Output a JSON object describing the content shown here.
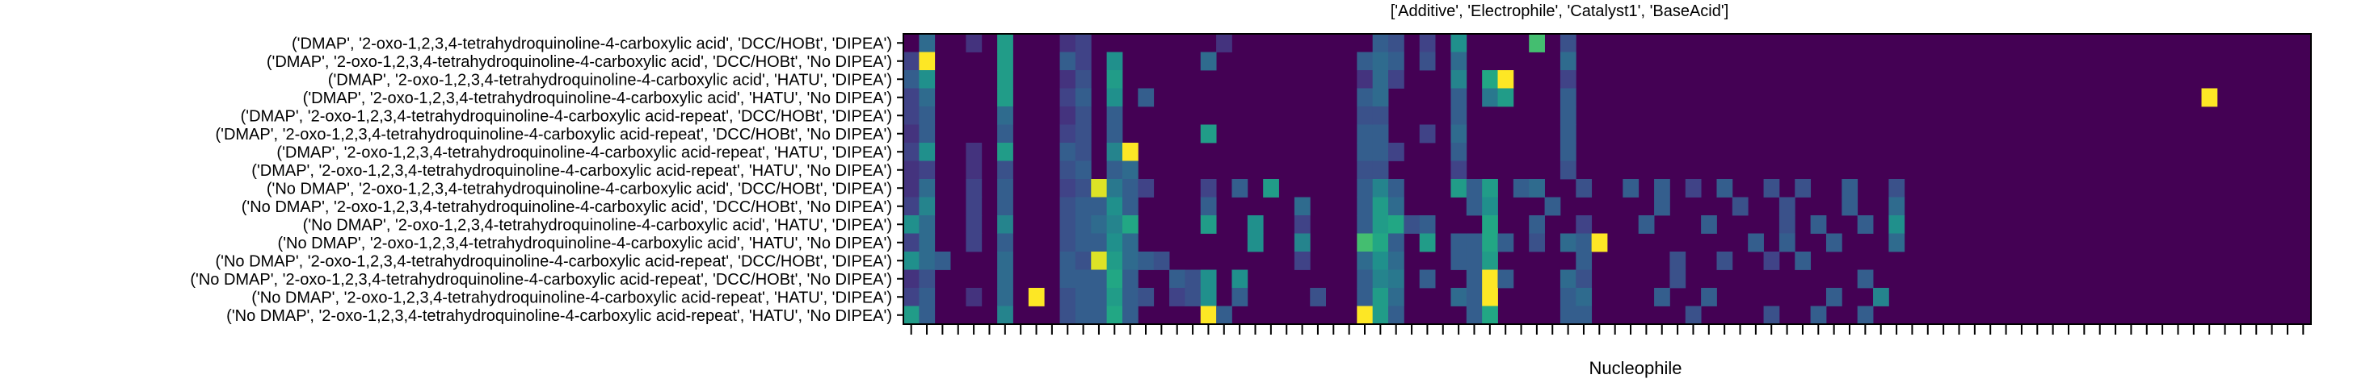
{
  "chart_data": {
    "type": "heatmap",
    "title": "['Additive', 'Electrophile', 'Catalyst1', 'BaseAcid']",
    "xlabel": "Nucleophile",
    "ylabel": "",
    "n_columns": 90,
    "x_tick_labels_visible": false,
    "colormap": "viridis",
    "value_range": [
      0,
      1
    ],
    "rows": [
      "('DMAP', '2-oxo-1,2,3,4-tetrahydroquinoline-4-carboxylic acid', 'DCC/HOBt', 'DIPEA')",
      "('DMAP', '2-oxo-1,2,3,4-tetrahydroquinoline-4-carboxylic acid', 'DCC/HOBt', 'No DIPEA')",
      "('DMAP', '2-oxo-1,2,3,4-tetrahydroquinoline-4-carboxylic acid', 'HATU', 'DIPEA')",
      "('DMAP', '2-oxo-1,2,3,4-tetrahydroquinoline-4-carboxylic acid', 'HATU', 'No DIPEA')",
      "('DMAP', '2-oxo-1,2,3,4-tetrahydroquinoline-4-carboxylic acid-repeat', 'DCC/HOBt', 'DIPEA')",
      "('DMAP', '2-oxo-1,2,3,4-tetrahydroquinoline-4-carboxylic acid-repeat', 'DCC/HOBt', 'No DIPEA')",
      "('DMAP', '2-oxo-1,2,3,4-tetrahydroquinoline-4-carboxylic acid-repeat', 'HATU', 'DIPEA')",
      "('DMAP', '2-oxo-1,2,3,4-tetrahydroquinoline-4-carboxylic acid-repeat', 'HATU', 'No DIPEA')",
      "('No DMAP', '2-oxo-1,2,3,4-tetrahydroquinoline-4-carboxylic acid', 'DCC/HOBt', 'DIPEA')",
      "('No DMAP', '2-oxo-1,2,3,4-tetrahydroquinoline-4-carboxylic acid', 'DCC/HOBt', 'No DIPEA')",
      "('No DMAP', '2-oxo-1,2,3,4-tetrahydroquinoline-4-carboxylic acid', 'HATU', 'DIPEA')",
      "('No DMAP', '2-oxo-1,2,3,4-tetrahydroquinoline-4-carboxylic acid', 'HATU', 'No DIPEA')",
      "('No DMAP', '2-oxo-1,2,3,4-tetrahydroquinoline-4-carboxylic acid-repeat', 'DCC/HOBt', 'DIPEA')",
      "('No DMAP', '2-oxo-1,2,3,4-tetrahydroquinoline-4-carboxylic acid-repeat', 'DCC/HOBt', 'No DIPEA')",
      "('No DMAP', '2-oxo-1,2,3,4-tetrahydroquinoline-4-carboxylic acid-repeat', 'HATU', 'DIPEA')",
      "('No DMAP', '2-oxo-1,2,3,4-tetrahydroquinoline-4-carboxylic acid-repeat', 'HATU', 'No DIPEA')"
    ],
    "cells": [
      [
        [
          1,
          0.35
        ],
        [
          4,
          0.15
        ],
        [
          6,
          0.55
        ],
        [
          10,
          0.15
        ],
        [
          11,
          0.2
        ],
        [
          20,
          0.15
        ],
        [
          30,
          0.3
        ],
        [
          31,
          0.25
        ],
        [
          33,
          0.2
        ],
        [
          35,
          0.5
        ],
        [
          40,
          0.7
        ],
        [
          42,
          0.25
        ]
      ],
      [
        [
          0,
          0.2
        ],
        [
          1,
          1.0
        ],
        [
          6,
          0.55
        ],
        [
          10,
          0.3
        ],
        [
          11,
          0.2
        ],
        [
          13,
          0.5
        ],
        [
          19,
          0.35
        ],
        [
          29,
          0.3
        ],
        [
          30,
          0.35
        ],
        [
          31,
          0.3
        ],
        [
          33,
          0.25
        ],
        [
          35,
          0.35
        ],
        [
          42,
          0.35
        ]
      ],
      [
        [
          0,
          0.3
        ],
        [
          1,
          0.5
        ],
        [
          6,
          0.55
        ],
        [
          10,
          0.15
        ],
        [
          11,
          0.25
        ],
        [
          13,
          0.55
        ],
        [
          29,
          0.15
        ],
        [
          30,
          0.35
        ],
        [
          31,
          0.2
        ],
        [
          35,
          0.45
        ],
        [
          37,
          0.6
        ],
        [
          38,
          1.0
        ],
        [
          42,
          0.2
        ]
      ],
      [
        [
          0,
          0.2
        ],
        [
          1,
          0.35
        ],
        [
          6,
          0.55
        ],
        [
          10,
          0.2
        ],
        [
          11,
          0.3
        ],
        [
          13,
          0.5
        ],
        [
          15,
          0.3
        ],
        [
          29,
          0.3
        ],
        [
          30,
          0.35
        ],
        [
          35,
          0.3
        ],
        [
          37,
          0.4
        ],
        [
          38,
          0.55
        ],
        [
          42,
          0.3
        ],
        [
          83,
          1.0
        ]
      ],
      [
        [
          0,
          0.2
        ],
        [
          1,
          0.3
        ],
        [
          6,
          0.35
        ],
        [
          10,
          0.15
        ],
        [
          11,
          0.25
        ],
        [
          13,
          0.3
        ],
        [
          29,
          0.25
        ],
        [
          30,
          0.25
        ],
        [
          35,
          0.3
        ],
        [
          42,
          0.3
        ]
      ],
      [
        [
          0,
          0.15
        ],
        [
          1,
          0.3
        ],
        [
          6,
          0.3
        ],
        [
          10,
          0.2
        ],
        [
          11,
          0.25
        ],
        [
          13,
          0.3
        ],
        [
          19,
          0.55
        ],
        [
          29,
          0.3
        ],
        [
          30,
          0.3
        ],
        [
          33,
          0.2
        ],
        [
          35,
          0.35
        ],
        [
          42,
          0.3
        ]
      ],
      [
        [
          0,
          0.2
        ],
        [
          1,
          0.5
        ],
        [
          4,
          0.15
        ],
        [
          6,
          0.55
        ],
        [
          10,
          0.3
        ],
        [
          11,
          0.25
        ],
        [
          13,
          0.45
        ],
        [
          14,
          1.0
        ],
        [
          29,
          0.3
        ],
        [
          30,
          0.3
        ],
        [
          31,
          0.2
        ],
        [
          35,
          0.3
        ],
        [
          42,
          0.3
        ]
      ],
      [
        [
          0,
          0.15
        ],
        [
          1,
          0.2
        ],
        [
          4,
          0.15
        ],
        [
          6,
          0.25
        ],
        [
          10,
          0.25
        ],
        [
          11,
          0.3
        ],
        [
          13,
          0.3
        ],
        [
          14,
          0.35
        ],
        [
          29,
          0.25
        ],
        [
          30,
          0.25
        ],
        [
          35,
          0.2
        ],
        [
          42,
          0.25
        ]
      ],
      [
        [
          0,
          0.15
        ],
        [
          1,
          0.35
        ],
        [
          4,
          0.2
        ],
        [
          6,
          0.3
        ],
        [
          10,
          0.2
        ],
        [
          11,
          0.25
        ],
        [
          12,
          0.95
        ],
        [
          13,
          0.4
        ],
        [
          14,
          0.3
        ],
        [
          15,
          0.2
        ],
        [
          19,
          0.2
        ],
        [
          21,
          0.3
        ],
        [
          23,
          0.55
        ],
        [
          29,
          0.3
        ],
        [
          30,
          0.45
        ],
        [
          31,
          0.3
        ],
        [
          35,
          0.55
        ],
        [
          36,
          0.3
        ],
        [
          37,
          0.55
        ],
        [
          39,
          0.3
        ],
        [
          40,
          0.35
        ],
        [
          43,
          0.25
        ],
        [
          46,
          0.3
        ],
        [
          48,
          0.3
        ],
        [
          50,
          0.2
        ],
        [
          52,
          0.3
        ],
        [
          55,
          0.25
        ],
        [
          57,
          0.25
        ],
        [
          60,
          0.3
        ],
        [
          63,
          0.25
        ]
      ],
      [
        [
          0,
          0.2
        ],
        [
          1,
          0.45
        ],
        [
          4,
          0.2
        ],
        [
          6,
          0.3
        ],
        [
          10,
          0.25
        ],
        [
          11,
          0.3
        ],
        [
          12,
          0.3
        ],
        [
          13,
          0.5
        ],
        [
          14,
          0.3
        ],
        [
          19,
          0.3
        ],
        [
          25,
          0.35
        ],
        [
          29,
          0.3
        ],
        [
          30,
          0.55
        ],
        [
          31,
          0.35
        ],
        [
          36,
          0.3
        ],
        [
          37,
          0.5
        ],
        [
          41,
          0.3
        ],
        [
          48,
          0.3
        ],
        [
          53,
          0.25
        ],
        [
          56,
          0.25
        ],
        [
          60,
          0.3
        ],
        [
          63,
          0.35
        ]
      ],
      [
        [
          0,
          0.5
        ],
        [
          1,
          0.35
        ],
        [
          4,
          0.2
        ],
        [
          6,
          0.45
        ],
        [
          10,
          0.25
        ],
        [
          11,
          0.3
        ],
        [
          12,
          0.35
        ],
        [
          13,
          0.45
        ],
        [
          14,
          0.6
        ],
        [
          19,
          0.55
        ],
        [
          22,
          0.5
        ],
        [
          25,
          0.2
        ],
        [
          29,
          0.3
        ],
        [
          30,
          0.55
        ],
        [
          31,
          0.6
        ],
        [
          32,
          0.25
        ],
        [
          33,
          0.3
        ],
        [
          37,
          0.6
        ],
        [
          40,
          0.3
        ],
        [
          43,
          0.2
        ],
        [
          47,
          0.3
        ],
        [
          51,
          0.3
        ],
        [
          56,
          0.25
        ],
        [
          58,
          0.3
        ],
        [
          61,
          0.3
        ],
        [
          63,
          0.5
        ]
      ],
      [
        [
          0,
          0.2
        ],
        [
          1,
          0.35
        ],
        [
          4,
          0.2
        ],
        [
          6,
          0.3
        ],
        [
          10,
          0.25
        ],
        [
          11,
          0.3
        ],
        [
          12,
          0.3
        ],
        [
          13,
          0.5
        ],
        [
          14,
          0.35
        ],
        [
          22,
          0.5
        ],
        [
          25,
          0.45
        ],
        [
          29,
          0.7
        ],
        [
          30,
          0.6
        ],
        [
          31,
          0.3
        ],
        [
          33,
          0.55
        ],
        [
          35,
          0.3
        ],
        [
          36,
          0.3
        ],
        [
          37,
          0.6
        ],
        [
          38,
          0.3
        ],
        [
          40,
          0.25
        ],
        [
          42,
          0.35
        ],
        [
          43,
          0.3
        ],
        [
          44,
          1.0
        ],
        [
          54,
          0.3
        ],
        [
          56,
          0.3
        ],
        [
          59,
          0.3
        ],
        [
          63,
          0.35
        ]
      ],
      [
        [
          0,
          0.5
        ],
        [
          1,
          0.35
        ],
        [
          2,
          0.3
        ],
        [
          6,
          0.35
        ],
        [
          10,
          0.3
        ],
        [
          11,
          0.25
        ],
        [
          12,
          0.95
        ],
        [
          13,
          0.55
        ],
        [
          14,
          0.35
        ],
        [
          15,
          0.3
        ],
        [
          16,
          0.25
        ],
        [
          25,
          0.2
        ],
        [
          29,
          0.35
        ],
        [
          30,
          0.5
        ],
        [
          31,
          0.35
        ],
        [
          35,
          0.3
        ],
        [
          36,
          0.3
        ],
        [
          37,
          0.55
        ],
        [
          43,
          0.3
        ],
        [
          49,
          0.25
        ],
        [
          52,
          0.25
        ],
        [
          55,
          0.2
        ],
        [
          57,
          0.3
        ]
      ],
      [
        [
          0,
          0.15
        ],
        [
          1,
          0.25
        ],
        [
          6,
          0.35
        ],
        [
          10,
          0.3
        ],
        [
          11,
          0.3
        ],
        [
          12,
          0.3
        ],
        [
          13,
          0.6
        ],
        [
          14,
          0.3
        ],
        [
          17,
          0.3
        ],
        [
          18,
          0.25
        ],
        [
          19,
          0.5
        ],
        [
          21,
          0.5
        ],
        [
          29,
          0.3
        ],
        [
          30,
          0.45
        ],
        [
          31,
          0.4
        ],
        [
          33,
          0.3
        ],
        [
          36,
          0.3
        ],
        [
          37,
          1.0
        ],
        [
          38,
          0.3
        ],
        [
          42,
          0.35
        ],
        [
          43,
          0.25
        ],
        [
          49,
          0.25
        ],
        [
          61,
          0.3
        ]
      ],
      [
        [
          0,
          0.2
        ],
        [
          1,
          0.3
        ],
        [
          4,
          0.15
        ],
        [
          6,
          0.35
        ],
        [
          8,
          1.0
        ],
        [
          10,
          0.25
        ],
        [
          11,
          0.3
        ],
        [
          12,
          0.3
        ],
        [
          13,
          0.55
        ],
        [
          14,
          0.3
        ],
        [
          15,
          0.25
        ],
        [
          17,
          0.2
        ],
        [
          18,
          0.25
        ],
        [
          19,
          0.5
        ],
        [
          21,
          0.3
        ],
        [
          26,
          0.25
        ],
        [
          29,
          0.3
        ],
        [
          30,
          0.55
        ],
        [
          31,
          0.35
        ],
        [
          35,
          0.35
        ],
        [
          36,
          0.3
        ],
        [
          37,
          1.0
        ],
        [
          42,
          0.3
        ],
        [
          43,
          0.35
        ],
        [
          48,
          0.3
        ],
        [
          51,
          0.3
        ],
        [
          59,
          0.3
        ],
        [
          62,
          0.45
        ]
      ],
      [
        [
          0,
          0.55
        ],
        [
          1,
          0.3
        ],
        [
          6,
          0.45
        ],
        [
          10,
          0.25
        ],
        [
          11,
          0.3
        ],
        [
          12,
          0.3
        ],
        [
          13,
          0.6
        ],
        [
          14,
          0.3
        ],
        [
          19,
          1.0
        ],
        [
          20,
          0.3
        ],
        [
          29,
          1.0
        ],
        [
          30,
          0.55
        ],
        [
          31,
          0.3
        ],
        [
          36,
          0.3
        ],
        [
          37,
          0.6
        ],
        [
          42,
          0.3
        ],
        [
          43,
          0.3
        ],
        [
          50,
          0.25
        ],
        [
          55,
          0.25
        ],
        [
          58,
          0.3
        ],
        [
          61,
          0.3
        ]
      ]
    ]
  }
}
